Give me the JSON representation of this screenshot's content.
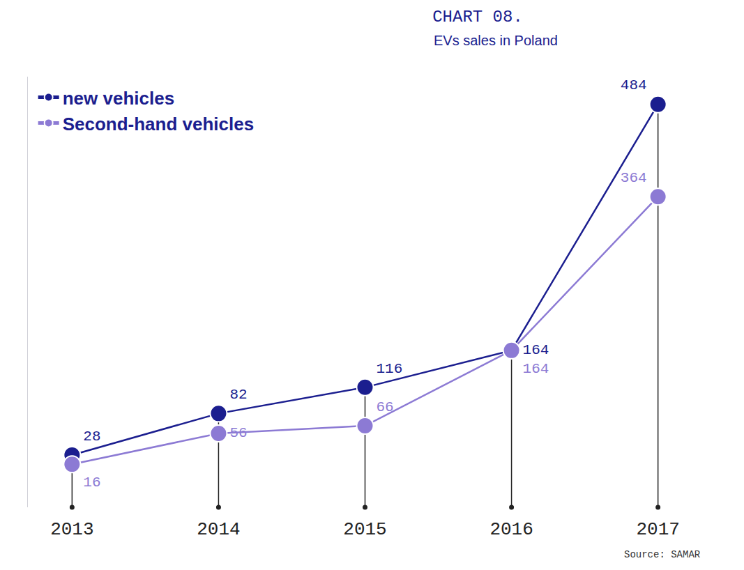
{
  "chart_data": {
    "type": "line",
    "title": "CHART 08.",
    "subtitle": "EVs sales in Poland",
    "source": "Source: SAMAR",
    "categories": [
      "2013",
      "2014",
      "2015",
      "2016",
      "2017"
    ],
    "series": [
      {
        "name": "new vehicles",
        "color": "#1b1e8f",
        "values": [
          28,
          82,
          116,
          164,
          484
        ]
      },
      {
        "name": "Second-hand vehicles",
        "color": "#8c7ad4",
        "values": [
          16,
          56,
          66,
          164,
          364
        ]
      }
    ],
    "ylim": [
      -40,
      520
    ],
    "yticks": [],
    "data_labels": true,
    "tick_labels": "x",
    "legend": "top left",
    "marker": "circle",
    "grid": false
  }
}
